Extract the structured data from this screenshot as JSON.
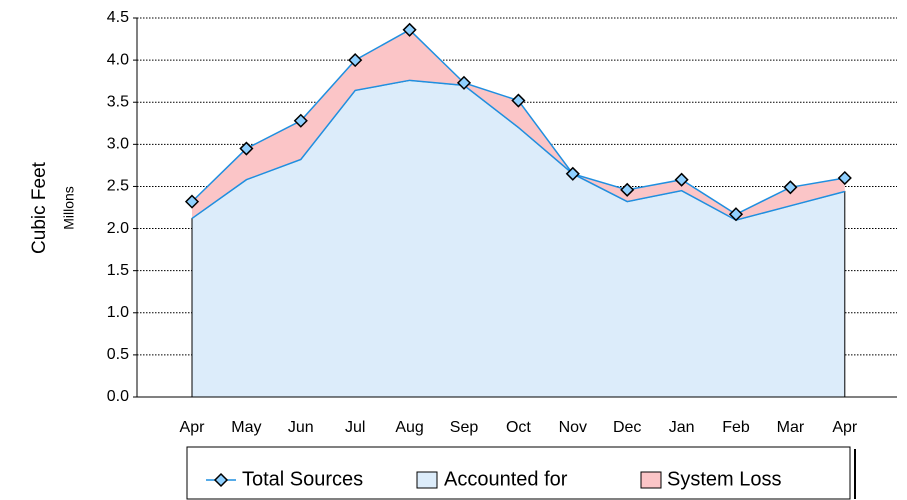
{
  "chart_data": {
    "type": "stacked-area-line",
    "y_label": "Cubic Feet",
    "y_unit_label": "Millons",
    "categories": [
      "Apr",
      "May",
      "Jun",
      "Jul",
      "Aug",
      "Sep",
      "Oct",
      "Nov",
      "Dec",
      "Jan",
      "Feb",
      "Mar",
      "Apr"
    ],
    "series": [
      {
        "name": "Total Sources",
        "kind": "line",
        "color": "#1f8fe0",
        "values": [
          2.32,
          2.95,
          3.28,
          4.0,
          4.36,
          3.73,
          3.52,
          2.65,
          2.46,
          2.58,
          2.17,
          2.49,
          2.6
        ]
      },
      {
        "name": "Accounted for",
        "kind": "area",
        "color": "#dcecfa",
        "values": [
          2.12,
          2.58,
          2.82,
          3.64,
          3.76,
          3.7,
          3.2,
          2.65,
          2.32,
          2.45,
          2.1,
          2.27,
          2.44
        ]
      },
      {
        "name": "System Loss",
        "kind": "area",
        "color": "#fbc5c7",
        "values": [
          0.2,
          0.37,
          0.46,
          0.36,
          0.6,
          0.03,
          0.32,
          0.0,
          0.14,
          0.13,
          0.07,
          0.22,
          0.16
        ]
      }
    ],
    "ylim": [
      0,
      4.5
    ],
    "yticks": [
      {
        "value": 0,
        "label": "0.0"
      },
      0.5,
      {
        "value": 1,
        "label": "1.0"
      },
      1.5,
      {
        "value": 2,
        "label": "2.0"
      },
      2.5,
      {
        "value": 3,
        "label": "3.0"
      },
      3.5,
      {
        "value": 4,
        "label": "4.0"
      },
      4.5
    ],
    "grid": true,
    "legend": "bottom"
  }
}
